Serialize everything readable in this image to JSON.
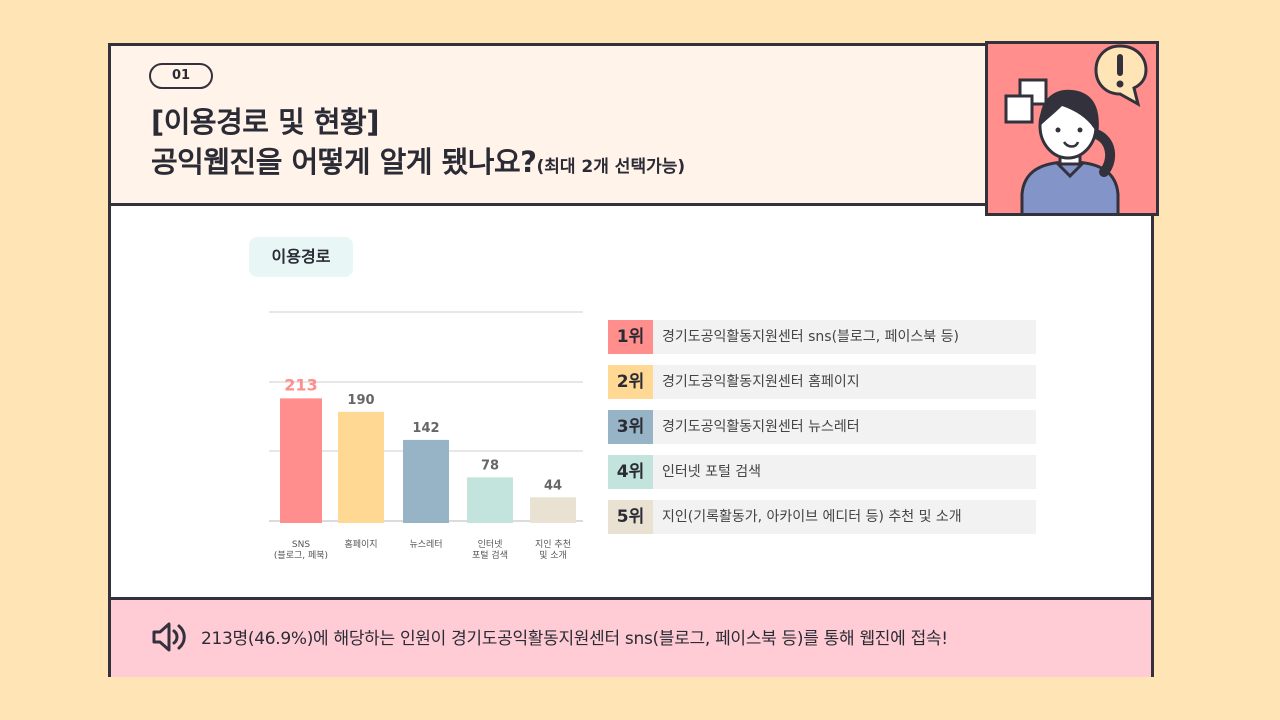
{
  "header": {
    "number": "01",
    "title_line1": "[이용경로 및 현황]",
    "title_line2": "공익웹진을 어떻게 알게 됐나요?",
    "title_sub": "(최대 2개 선택가능)"
  },
  "section": {
    "label": "이용경로"
  },
  "chart_data": {
    "type": "bar",
    "categories": [
      [
        "SNS",
        "(블로그, 페북)"
      ],
      [
        "홈페이지"
      ],
      [
        "뉴스레터"
      ],
      [
        "인터넷",
        "포털 검색"
      ],
      [
        "지인 추천",
        "및 소개"
      ]
    ],
    "values": [
      213,
      190,
      142,
      78,
      44
    ],
    "colors": [
      "#ff8e8c",
      "#ffd993",
      "#96b4c5",
      "#c3e4dc",
      "#e9e2d2"
    ],
    "highlight_color": "#ff8e8c",
    "ylim": [
      0,
      250
    ],
    "grid": true
  },
  "ranking": [
    {
      "rank": "1위",
      "text": "경기도공익활동지원센터 sns(블로그, 페이스북 등)",
      "color": "#ff8e8c"
    },
    {
      "rank": "2위",
      "text": "경기도공익활동지원센터 홈페이지",
      "color": "#ffd993"
    },
    {
      "rank": "3위",
      "text": "경기도공익활동지원센터 뉴스레터",
      "color": "#96b4c5"
    },
    {
      "rank": "4위",
      "text": "인터넷 포털 검색",
      "color": "#c3e4dc"
    },
    {
      "rank": "5위",
      "text": "지인(기록활동가, 아카이브 에디터 등) 추천 및 소개",
      "color": "#e9e2d2"
    }
  ],
  "footer": {
    "icon": "speaker-icon",
    "text": "213명(46.9%)에 해당하는 인원이 경기도공익활동지원센터 sns(블로그, 페이스북 등)를 통해 웹진에 접속!"
  },
  "illustration": {
    "icon": "woman-avatar-icon",
    "bubble_icon": "exclamation-icon"
  }
}
